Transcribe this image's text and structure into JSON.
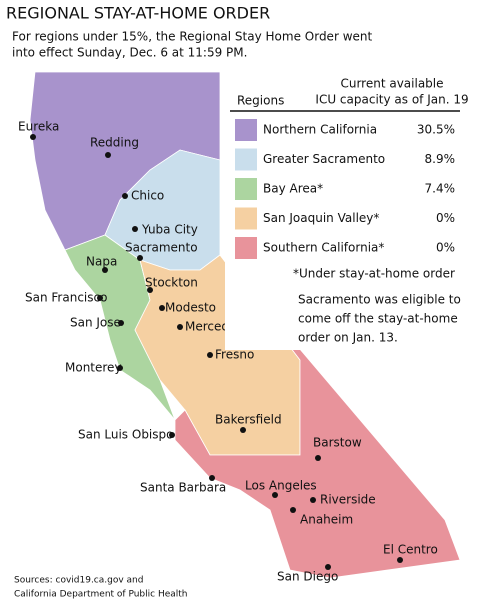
{
  "header": {
    "title": "REGIONAL STAY-AT-HOME ORDER",
    "subtitle_lines": [
      "For regions under 15%, the Regional Stay Home Order went",
      "into effect Sunday, Dec. 6 at 11:59 PM."
    ]
  },
  "legend": {
    "region_header": "Regions",
    "value_header_lines": [
      "Current available",
      "ICU capacity as of Jan. 19"
    ],
    "rows": [
      {
        "name": "Northern California",
        "value": "30.5%",
        "color": "#a893cc"
      },
      {
        "name": "Greater Sacramento",
        "value": "8.9%",
        "color": "#c9deec"
      },
      {
        "name": "Bay Area*",
        "value": "7.4%",
        "color": "#acd5a0"
      },
      {
        "name": "San Joaquin Valley*",
        "value": "0%",
        "color": "#f5d0a2"
      },
      {
        "name": "Southern California*",
        "value": "0%",
        "color": "#e8939b"
      }
    ],
    "footnote": "*Under stay-at-home order",
    "note_lines": [
      "Sacramento was eligible to",
      "come off the stay-at-home",
      "order on Jan. 13."
    ]
  },
  "cities": [
    "Eureka",
    "Redding",
    "Chico",
    "Yuba City",
    "Sacramento",
    "Napa",
    "Stockton",
    "San Francisco",
    "Modesto",
    "San Jose",
    "Merced",
    "Fresno",
    "Monterey",
    "Bakersfield",
    "San Luis Obispo",
    "Barstow",
    "Santa Barbara",
    "Los Angeles",
    "Riverside",
    "Anaheim",
    "El Centro",
    "San Diego"
  ],
  "sources_lines": [
    "Sources: covid19.ca.gov and",
    "California Department of Public Health"
  ]
}
